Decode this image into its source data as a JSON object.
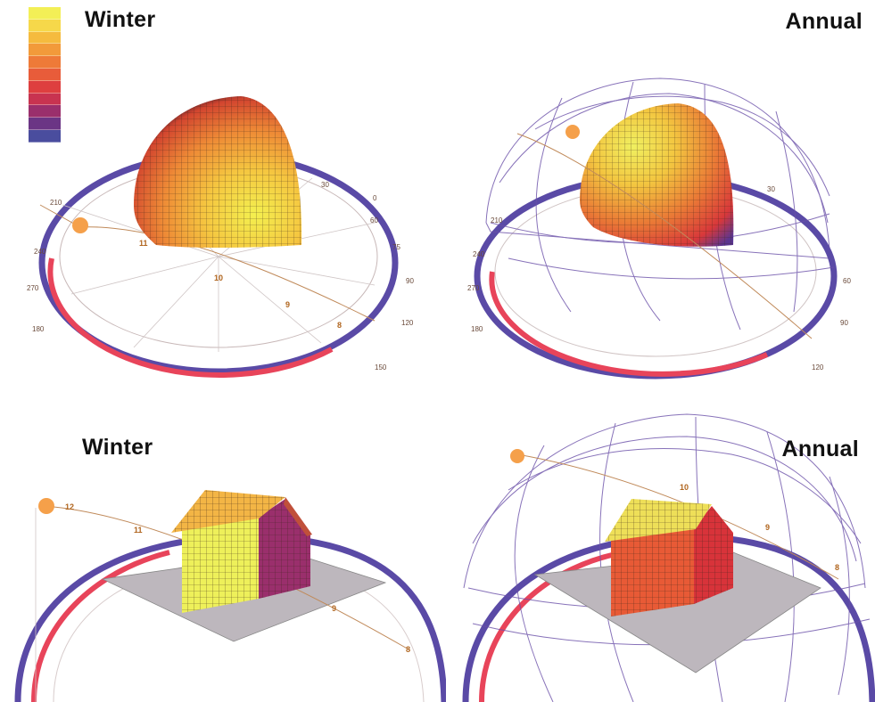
{
  "panels": {
    "top_left": {
      "title": "Winter"
    },
    "top_right": {
      "title": "Annual"
    },
    "bottom_left": {
      "title": "Winter"
    },
    "bottom_right": {
      "title": "Annual"
    }
  },
  "legend": {
    "colors": [
      "#f3ef56",
      "#f6d84a",
      "#f5bb3e",
      "#f29a3a",
      "#ee7a38",
      "#e85c3a",
      "#de3f3f",
      "#c83350",
      "#9a2f6c",
      "#6b3585",
      "#4a4d9e"
    ]
  },
  "colors": {
    "ring_outer": "#5a4aa6",
    "ring_inner": "#e8445a",
    "sun": "#f5a04a",
    "sky_grid": "#6a4fa8",
    "ground": "#bdb7bd"
  },
  "labels": {
    "tl_hours": [
      "11",
      "10",
      "9",
      "8"
    ],
    "tl_azimuths": [
      "270",
      "240",
      "210",
      "180",
      "150",
      "120",
      "90",
      "60",
      "30",
      "0",
      "75"
    ],
    "tr_azimuths": [
      "270",
      "240",
      "210",
      "180",
      "120",
      "90",
      "60",
      "30"
    ],
    "bl_hours": [
      "12",
      "11",
      "9",
      "8"
    ],
    "br_hours": [
      "10",
      "9",
      "8"
    ]
  }
}
